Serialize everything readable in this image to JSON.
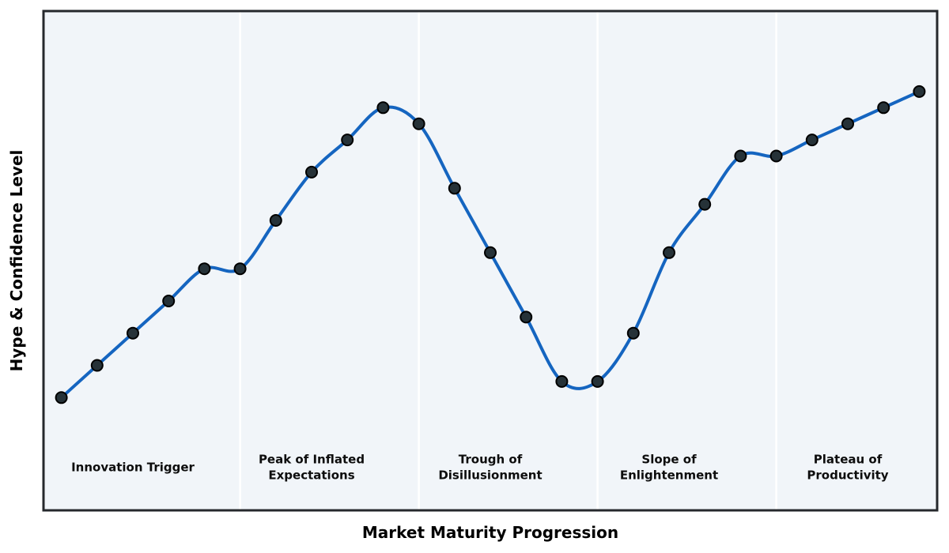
{
  "chart_data": {
    "type": "line",
    "title": "",
    "xlabel": "Market Maturity Progression",
    "ylabel": "Hype & Confidence Level",
    "x": [
      0,
      1,
      2,
      3,
      4,
      5,
      6,
      7,
      8,
      9,
      10,
      11,
      12,
      13,
      14,
      15,
      16,
      17,
      18,
      19,
      20,
      21,
      22,
      23,
      24
    ],
    "y": [
      5,
      15,
      25,
      35,
      45,
      45,
      60,
      75,
      85,
      95,
      90,
      70,
      50,
      30,
      10,
      10,
      25,
      50,
      65,
      80,
      80,
      85,
      90,
      95,
      100
    ],
    "xlim": [
      -0.5,
      24.5
    ],
    "ylim": [
      -30,
      125
    ],
    "grid": false,
    "smooth_curve": true,
    "tick_labels_visible": false,
    "legend": "none",
    "line_color": "#1565c0",
    "line_width": 4,
    "marker_shape": "circle",
    "marker_color": "#263238",
    "marker_edge_color": "#000000",
    "plot_background_color": "#f1f5f9",
    "figure_background_color": "#ffffff",
    "border_color": "#25282c",
    "divider_color": "#ffffff",
    "phase_dividers_x": [
      5,
      10,
      15,
      20
    ],
    "phases": [
      {
        "label": "Innovation Trigger",
        "x_center": 2
      },
      {
        "label": "Peak of Inflated\nExpectations",
        "x_center": 7
      },
      {
        "label": "Trough of\nDisillusionment",
        "x_center": 12
      },
      {
        "label": "Slope of\nEnlightenment",
        "x_center": 17
      },
      {
        "label": "Plateau of\nProductivity",
        "x_center": 22
      }
    ]
  }
}
